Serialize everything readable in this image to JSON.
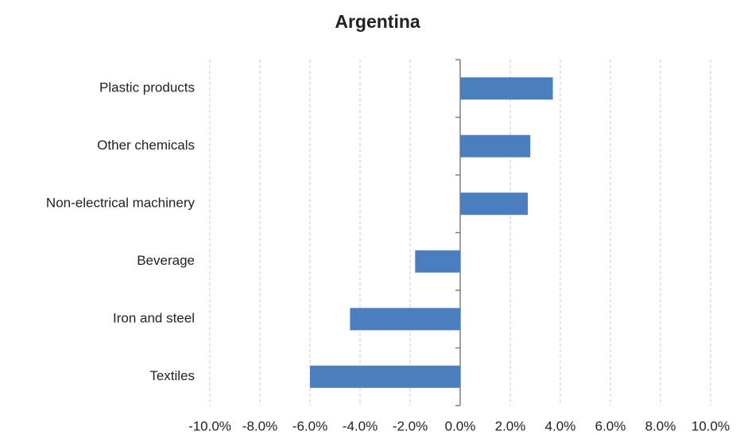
{
  "chart_data": {
    "type": "bar",
    "orientation": "horizontal",
    "title": "Argentina",
    "categories": [
      "Plastic products",
      "Other chemicals",
      "Non-electrical machinery",
      "Beverage",
      "Iron and steel",
      "Textiles"
    ],
    "values": [
      3.7,
      2.8,
      2.7,
      -1.8,
      -4.4,
      -6.0
    ],
    "color": "#4a7ebf",
    "xlim": [
      -10,
      10
    ],
    "xticks": [
      {
        "value": -10,
        "label": "-10.0%"
      },
      {
        "value": -8,
        "label": "-8.0%"
      },
      {
        "value": -6,
        "label": "-6.0%"
      },
      {
        "value": -4,
        "label": "-4.0%"
      },
      {
        "value": -2,
        "label": "-2.0%"
      },
      {
        "value": 0,
        "label": "0.0%"
      },
      {
        "value": 2,
        "label": "2.0%"
      },
      {
        "value": 4,
        "label": "4.0%"
      },
      {
        "value": 6,
        "label": "6.0%"
      },
      {
        "value": 8,
        "label": "8.0%"
      },
      {
        "value": 10,
        "label": "10.0%"
      }
    ],
    "grid": true
  }
}
